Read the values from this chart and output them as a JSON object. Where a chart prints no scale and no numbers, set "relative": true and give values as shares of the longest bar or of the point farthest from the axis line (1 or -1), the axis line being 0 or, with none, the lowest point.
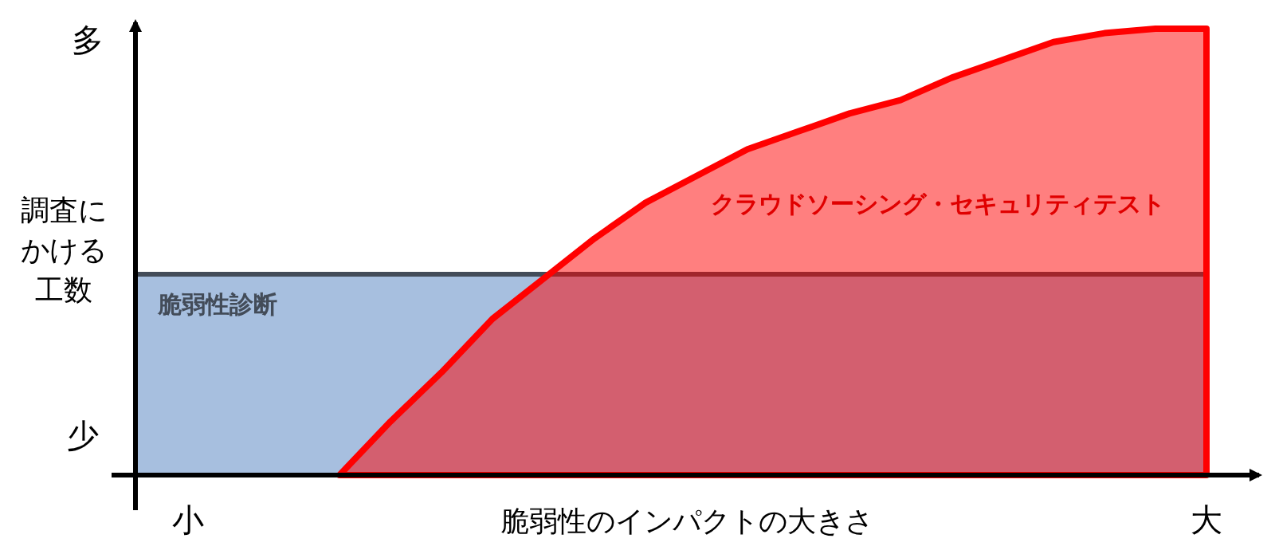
{
  "chart_data": {
    "type": "area",
    "relative": true,
    "xlabel": "脆弱性のインパクトの大きさ",
    "ylabel": "調査にかける工数",
    "categories": [
      null,
      null,
      null,
      null,
      null,
      null,
      null,
      null,
      null,
      null,
      null,
      null,
      null,
      null,
      null,
      null,
      null,
      null,
      null,
      null,
      null,
      null
    ],
    "annotations": [
      "多",
      "少",
      "小",
      "大"
    ],
    "series": [
      {
        "name": "脆弱性診断",
        "color": "#a7bfdf",
        "values": [
          0.45,
          0.45,
          0.45,
          0.45,
          0.45,
          0.45,
          0.45,
          0.45,
          0.45,
          0.45,
          0.45,
          0.45,
          0.45,
          0.45,
          0.45,
          0.45,
          0.45,
          0.45,
          0.45,
          0.45,
          0.45,
          0.45
        ]
      },
      {
        "name": "クラウドソーシング・セキュリティテスト",
        "color": "#ff0000",
        "values": [
          null,
          null,
          null,
          null,
          0,
          0.12,
          0.23,
          0.35,
          0.44,
          0.53,
          0.61,
          0.67,
          0.73,
          0.77,
          0.81,
          0.84,
          0.89,
          0.93,
          0.97,
          0.99,
          1,
          1
        ]
      }
    ]
  }
}
